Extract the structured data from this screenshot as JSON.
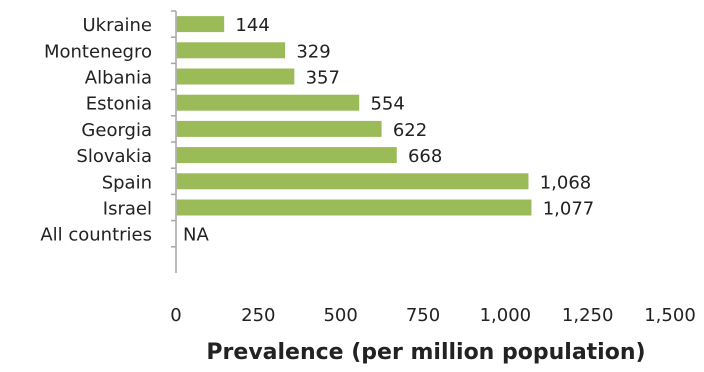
{
  "chart_data": {
    "type": "bar",
    "orientation": "horizontal",
    "categories": [
      "Ukraine",
      "Montenegro",
      "Albania",
      "Estonia",
      "Georgia",
      "Slovakia",
      "Spain",
      "Israel",
      "All countries"
    ],
    "values": [
      144,
      329,
      357,
      554,
      622,
      668,
      1068,
      1077,
      null
    ],
    "data_labels": [
      "144",
      "329",
      "357",
      "554",
      "622",
      "668",
      "1,068",
      "1,077",
      "NA"
    ],
    "xlabel": "Prevalence (per million population)",
    "ylabel": "",
    "xlim": [
      0,
      1500
    ],
    "xticks": [
      0,
      250,
      500,
      750,
      1000,
      1250,
      1500
    ],
    "xtick_labels": [
      "0",
      "250",
      "500",
      "750",
      "1,000",
      "1,250",
      "1,500"
    ],
    "grid": false,
    "legend": "none",
    "bar_color": "#9bbb59",
    "axis_color": "#a6a6a6"
  }
}
